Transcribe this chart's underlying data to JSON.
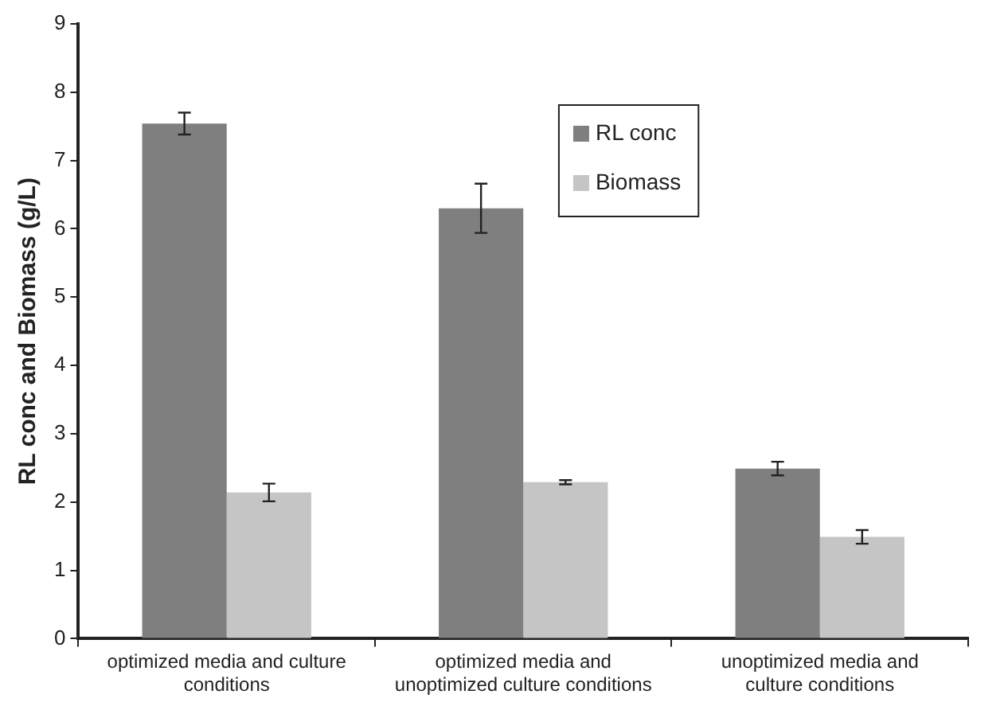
{
  "chart_data": {
    "type": "bar",
    "ylabel": "RL conc and Biomass (g/L)",
    "categories": [
      "optimized media and culture\nconditions",
      "optimized media and\nunoptimized culture conditions",
      "unoptimized media and\nculture conditions"
    ],
    "series": [
      {
        "name": "RL conc",
        "color": "#7f7f7f",
        "values": [
          7.54,
          6.3,
          2.49
        ],
        "errors": [
          0.16,
          0.36,
          0.1
        ]
      },
      {
        "name": "Biomass",
        "color": "#c4c5c4",
        "values": [
          2.14,
          2.29,
          1.49
        ],
        "errors": [
          0.13,
          0.03,
          0.1
        ]
      }
    ],
    "ylim": [
      0,
      9
    ],
    "yticks": [
      0,
      1,
      2,
      3,
      4,
      5,
      6,
      7,
      8,
      9
    ],
    "grid": false,
    "legend": "top right"
  }
}
